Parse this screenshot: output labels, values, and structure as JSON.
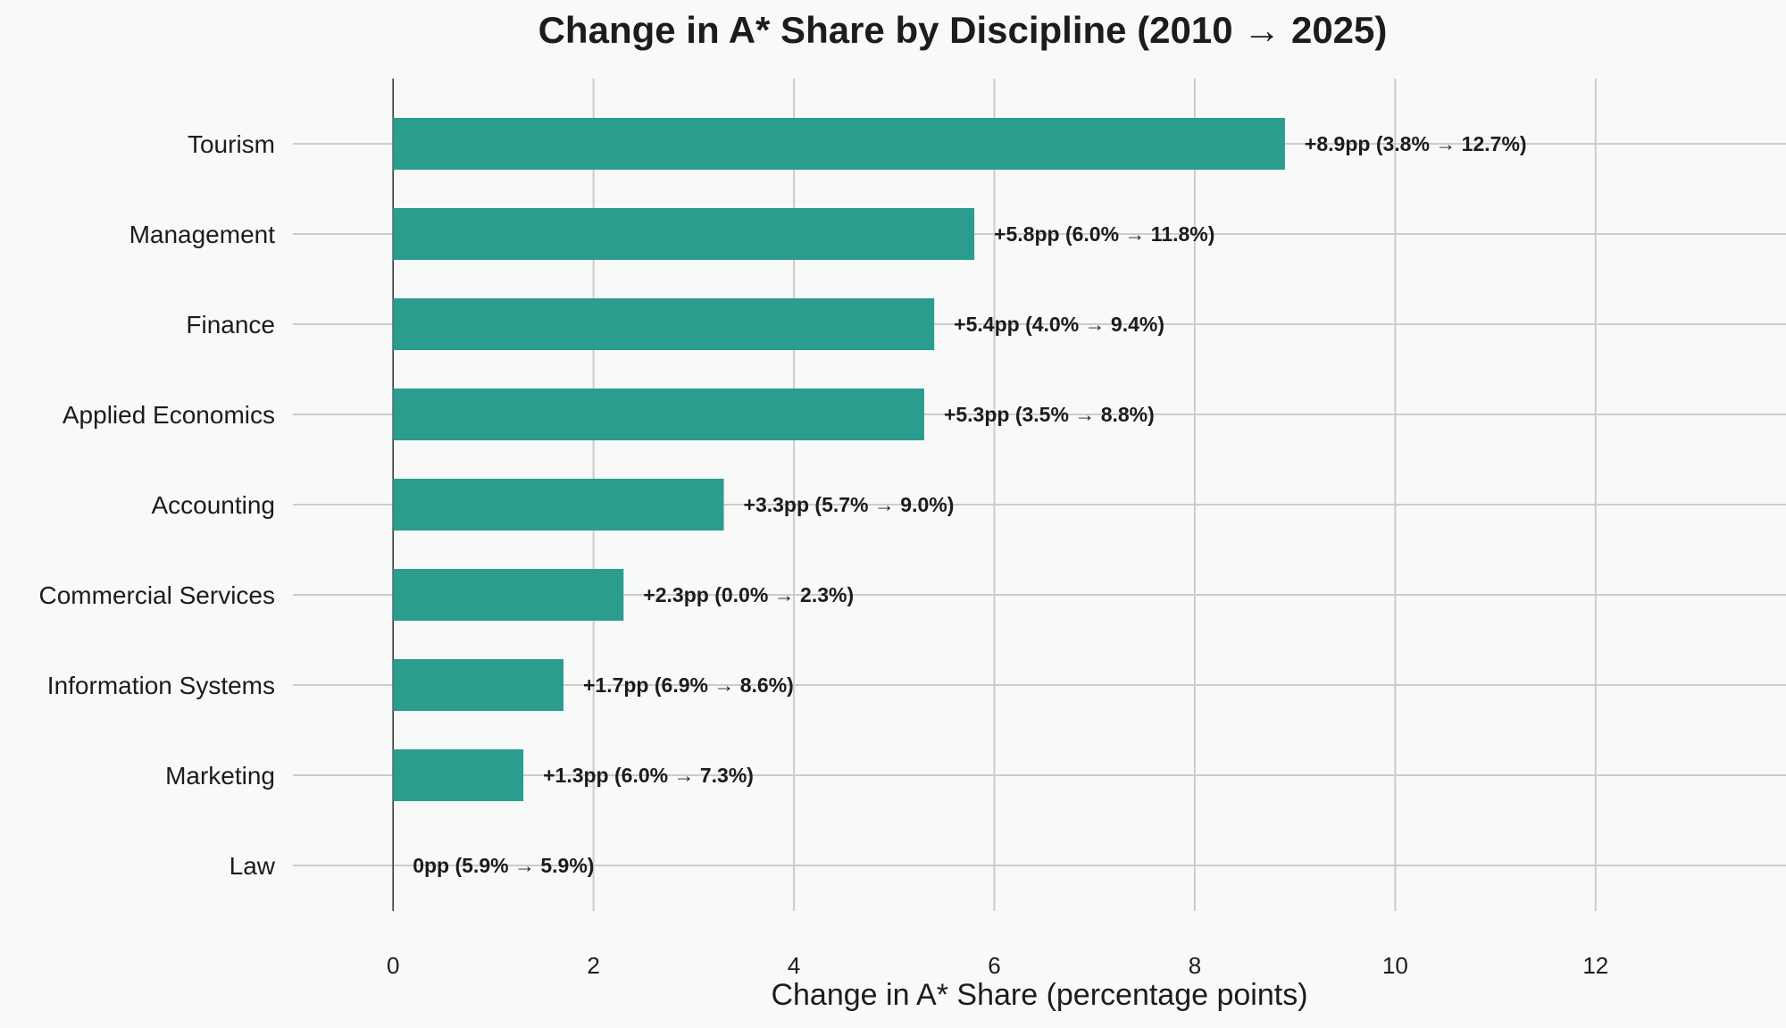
{
  "chart_data": {
    "type": "bar",
    "orientation": "horizontal",
    "title": "Change in A* Share by Discipline (2010 → 2025)",
    "xlabel": "Change in A* Share (percentage points)",
    "ylabel": "",
    "xlim": [
      -1,
      13.9
    ],
    "xticks": [
      0,
      2,
      4,
      6,
      8,
      10,
      12
    ],
    "xtick_labels": [
      "0",
      "2",
      "4",
      "6",
      "8",
      "10",
      "12"
    ],
    "grid": true,
    "legend": "none",
    "bar_color": "#2a9d8f",
    "categories": [
      "Tourism",
      "Management",
      "Finance",
      "Applied Economics",
      "Accounting",
      "Commercial Services",
      "Information Systems",
      "Marketing",
      "Law"
    ],
    "values": [
      8.9,
      5.8,
      5.4,
      5.3,
      3.3,
      2.3,
      1.7,
      1.3,
      0
    ],
    "start_values": [
      3.8,
      6.0,
      4.0,
      3.5,
      5.7,
      0.0,
      6.9,
      6.0,
      5.9
    ],
    "end_values": [
      12.7,
      11.8,
      9.4,
      8.8,
      9.0,
      2.3,
      8.6,
      7.3,
      5.9
    ],
    "data_labels": [
      "+8.9pp  (3.8% → 12.7%)",
      "+5.8pp  (6.0% → 11.8%)",
      "+5.4pp  (4.0% → 9.4%)",
      "+5.3pp  (3.5% → 8.8%)",
      "+3.3pp  (5.7% → 9.0%)",
      "+2.3pp  (0.0% → 2.3%)",
      "+1.7pp  (6.9% → 8.6%)",
      "+1.3pp  (6.0% → 7.3%)",
      "0pp  (5.9% → 5.9%)"
    ]
  }
}
